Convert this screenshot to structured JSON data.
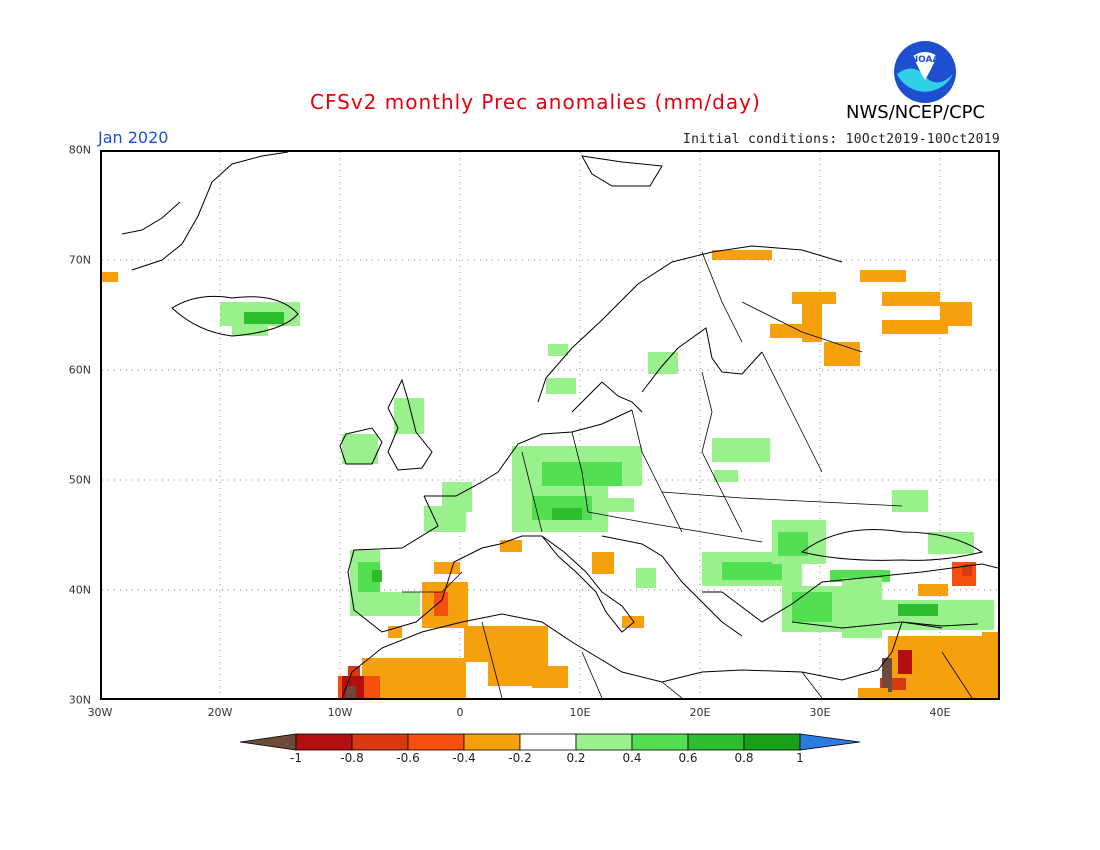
{
  "header": {
    "title": "CFSv2 monthly Prec anomalies (mm/day)",
    "agency": "NWS/NCEP/CPC",
    "logo_text": "NOAA",
    "month": "Jan 2020",
    "initial_conditions": "Initial conditions: 10Oct2019-10Oct2019"
  },
  "map": {
    "lon_labels": [
      "30W",
      "20W",
      "10W",
      "0",
      "10E",
      "20E",
      "30E",
      "40E"
    ],
    "lat_labels": [
      "80N",
      "70N",
      "60N",
      "50N",
      "40N",
      "30N"
    ]
  },
  "colorbar": {
    "tick_labels": [
      "-1",
      "-0.8",
      "-0.6",
      "-0.4",
      "-0.2",
      "0.2",
      "0.4",
      "0.6",
      "0.8",
      "1"
    ],
    "colors": [
      "#6e4a3a",
      "#b40f0f",
      "#d93a12",
      "#f5500f",
      "#f7a00e",
      "#ffffff",
      "#9af08c",
      "#52e052",
      "#2ebd2e",
      "#18a018",
      "#2b7be0"
    ]
  }
}
